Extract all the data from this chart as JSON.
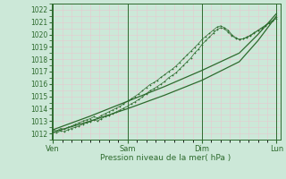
{
  "xlabel": "Pression niveau de la mer( hPa )",
  "bg_color": "#cce8d8",
  "grid_color": "#e8c8d0",
  "line_color": "#2d6a2d",
  "ylim": [
    1011.5,
    1022.5
  ],
  "yticks": [
    1012,
    1013,
    1014,
    1015,
    1016,
    1017,
    1018,
    1019,
    1020,
    1021,
    1022
  ],
  "xtick_labels": [
    "Ven",
    "Sam",
    "Dim",
    "Lun"
  ],
  "xtick_positions": [
    0,
    1,
    2,
    3
  ],
  "xlim": [
    -0.02,
    3.05
  ],
  "smooth_line1": {
    "x": [
      0.0,
      0.5,
      1.0,
      1.5,
      2.0,
      2.5,
      2.75,
      3.0
    ],
    "y": [
      1012.1,
      1013.0,
      1014.0,
      1015.1,
      1016.3,
      1017.8,
      1019.5,
      1021.5
    ]
  },
  "smooth_line2": {
    "x": [
      0.0,
      0.5,
      1.0,
      1.5,
      2.0,
      2.5,
      2.75,
      3.0
    ],
    "y": [
      1012.3,
      1013.4,
      1014.6,
      1015.8,
      1017.1,
      1018.5,
      1020.0,
      1021.7
    ]
  },
  "jagged_line1_x": [
    0.0,
    0.05,
    0.1,
    0.15,
    0.2,
    0.25,
    0.3,
    0.35,
    0.4,
    0.45,
    0.5,
    0.55,
    0.6,
    0.65,
    0.7,
    0.75,
    0.8,
    0.85,
    0.9,
    0.95,
    1.0,
    1.05,
    1.1,
    1.15,
    1.2,
    1.25,
    1.3,
    1.35,
    1.4,
    1.45,
    1.5,
    1.55,
    1.6,
    1.65,
    1.7,
    1.75,
    1.8,
    1.85,
    1.9,
    1.95,
    2.0,
    2.05,
    2.1,
    2.15,
    2.2,
    2.25,
    2.3,
    2.35,
    2.4,
    2.45,
    2.5,
    2.55,
    2.6,
    2.65,
    2.7,
    2.75,
    2.8,
    2.85,
    2.9,
    2.95,
    3.0
  ],
  "jagged_line1_y": [
    1012.1,
    1012.05,
    1012.2,
    1012.15,
    1012.3,
    1012.4,
    1012.5,
    1012.6,
    1012.75,
    1012.85,
    1012.95,
    1013.1,
    1013.0,
    1013.2,
    1013.35,
    1013.45,
    1013.6,
    1013.75,
    1013.9,
    1014.05,
    1014.2,
    1014.4,
    1014.55,
    1014.75,
    1014.95,
    1015.2,
    1015.45,
    1015.6,
    1015.8,
    1016.0,
    1016.2,
    1016.5,
    1016.7,
    1016.9,
    1017.2,
    1017.5,
    1017.8,
    1018.1,
    1018.5,
    1018.8,
    1019.2,
    1019.5,
    1019.8,
    1020.1,
    1020.4,
    1020.55,
    1020.45,
    1020.2,
    1019.9,
    1019.7,
    1019.6,
    1019.65,
    1019.75,
    1019.9,
    1020.1,
    1020.3,
    1020.5,
    1020.7,
    1020.9,
    1021.1,
    1021.3
  ],
  "jagged_line2_x": [
    0.0,
    0.05,
    0.1,
    0.15,
    0.2,
    0.25,
    0.3,
    0.35,
    0.4,
    0.45,
    0.5,
    0.55,
    0.6,
    0.65,
    0.7,
    0.75,
    0.8,
    0.85,
    0.9,
    0.95,
    1.0,
    1.05,
    1.1,
    1.15,
    1.2,
    1.25,
    1.3,
    1.35,
    1.4,
    1.45,
    1.5,
    1.55,
    1.6,
    1.65,
    1.7,
    1.75,
    1.8,
    1.85,
    1.9,
    1.95,
    2.0,
    2.05,
    2.1,
    2.15,
    2.2,
    2.25,
    2.3,
    2.35,
    2.4,
    2.45,
    2.5,
    2.55,
    2.6,
    2.65,
    2.7,
    2.75,
    2.8,
    2.85,
    2.9,
    2.95,
    3.0
  ],
  "jagged_line2_y": [
    1012.3,
    1012.2,
    1012.4,
    1012.35,
    1012.5,
    1012.6,
    1012.75,
    1012.85,
    1013.0,
    1013.1,
    1013.2,
    1013.35,
    1013.25,
    1013.45,
    1013.6,
    1013.75,
    1013.9,
    1014.05,
    1014.2,
    1014.4,
    1014.6,
    1014.8,
    1015.0,
    1015.2,
    1015.45,
    1015.7,
    1015.95,
    1016.1,
    1016.3,
    1016.55,
    1016.75,
    1017.0,
    1017.2,
    1017.45,
    1017.75,
    1018.05,
    1018.35,
    1018.65,
    1018.95,
    1019.25,
    1019.6,
    1019.85,
    1020.1,
    1020.35,
    1020.6,
    1020.7,
    1020.55,
    1020.35,
    1020.0,
    1019.75,
    1019.6,
    1019.65,
    1019.8,
    1019.95,
    1020.15,
    1020.35,
    1020.55,
    1020.75,
    1020.95,
    1021.15,
    1021.4
  ]
}
